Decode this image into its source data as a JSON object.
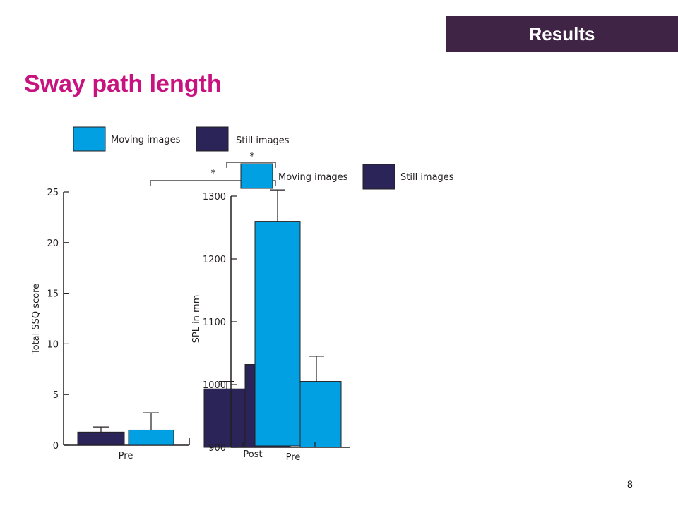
{
  "header": {
    "section_label": "Results"
  },
  "slide": {
    "title": "Sway path length",
    "page_number": "8"
  },
  "colors": {
    "moving": "#00a0e3",
    "still": "#2b2459",
    "accent": "#c7127f",
    "header_bg": "#3f2446"
  },
  "chart_data": [
    {
      "type": "bar",
      "ylabel": "Total SSQ score",
      "ylim": [
        0,
        25
      ],
      "yticks": [
        0,
        5,
        10,
        15,
        20,
        25
      ],
      "categories": [
        "Pre"
      ],
      "legend": [
        "Moving images",
        "Still images"
      ],
      "series": [
        {
          "name": "Still images",
          "values": [
            1.3
          ],
          "errors": [
            0.5
          ]
        },
        {
          "name": "Moving images",
          "values": [
            1.5
          ],
          "errors": [
            1.7
          ]
        }
      ]
    },
    {
      "type": "bar",
      "ylabel": "SPL in mm",
      "ylim": [
        900,
        1300
      ],
      "yticks": [
        900,
        1000,
        1100,
        1200,
        1300
      ],
      "categories": [
        "Pre",
        "Post"
      ],
      "legend": [
        "Moving images",
        "Still images"
      ],
      "series": [
        {
          "name": "Still images",
          "values": [
            993,
            1032
          ],
          "errors": [
            12,
            null
          ]
        },
        {
          "name": "Moving images",
          "values": [
            1260,
            1005
          ],
          "errors": [
            50,
            40
          ]
        }
      ],
      "annotations": [
        "*",
        "*"
      ]
    }
  ]
}
